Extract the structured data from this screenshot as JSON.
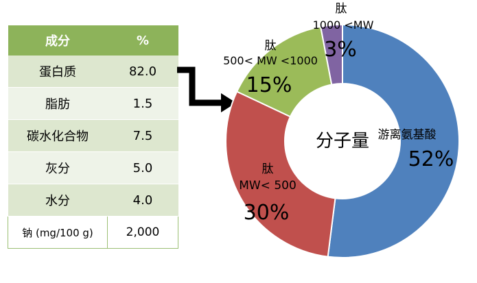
{
  "table": {
    "headers": [
      "成分",
      "%"
    ],
    "rows": [
      [
        "蛋白质",
        "82.0"
      ],
      [
        "脂肪",
        "1.5"
      ],
      [
        "碳水化合物",
        "7.5"
      ],
      [
        "灰分",
        "5.0"
      ],
      [
        "水分",
        "4.0"
      ],
      [
        "钠 (mg/100 g)",
        "2,000"
      ]
    ]
  },
  "chart_data": {
    "type": "pie",
    "center_label": "分子量",
    "slices": [
      {
        "name": "游离氨基酸",
        "value": 52,
        "label": "52%",
        "color": "#4f81bd"
      },
      {
        "name": "肽",
        "sublabel": "MW< 500",
        "value": 30,
        "label": "30%",
        "color": "#c0504d"
      },
      {
        "name": "肽",
        "sublabel": "500< MW <1000",
        "value": 15,
        "label": "15%",
        "color": "#9bbb59"
      },
      {
        "name": "肽",
        "sublabel": "1000 <MW",
        "value": 3,
        "label": "3%",
        "color": "#8064a2"
      }
    ]
  },
  "colors": {
    "table_header": "#8db35a",
    "arrow": "#000000"
  }
}
